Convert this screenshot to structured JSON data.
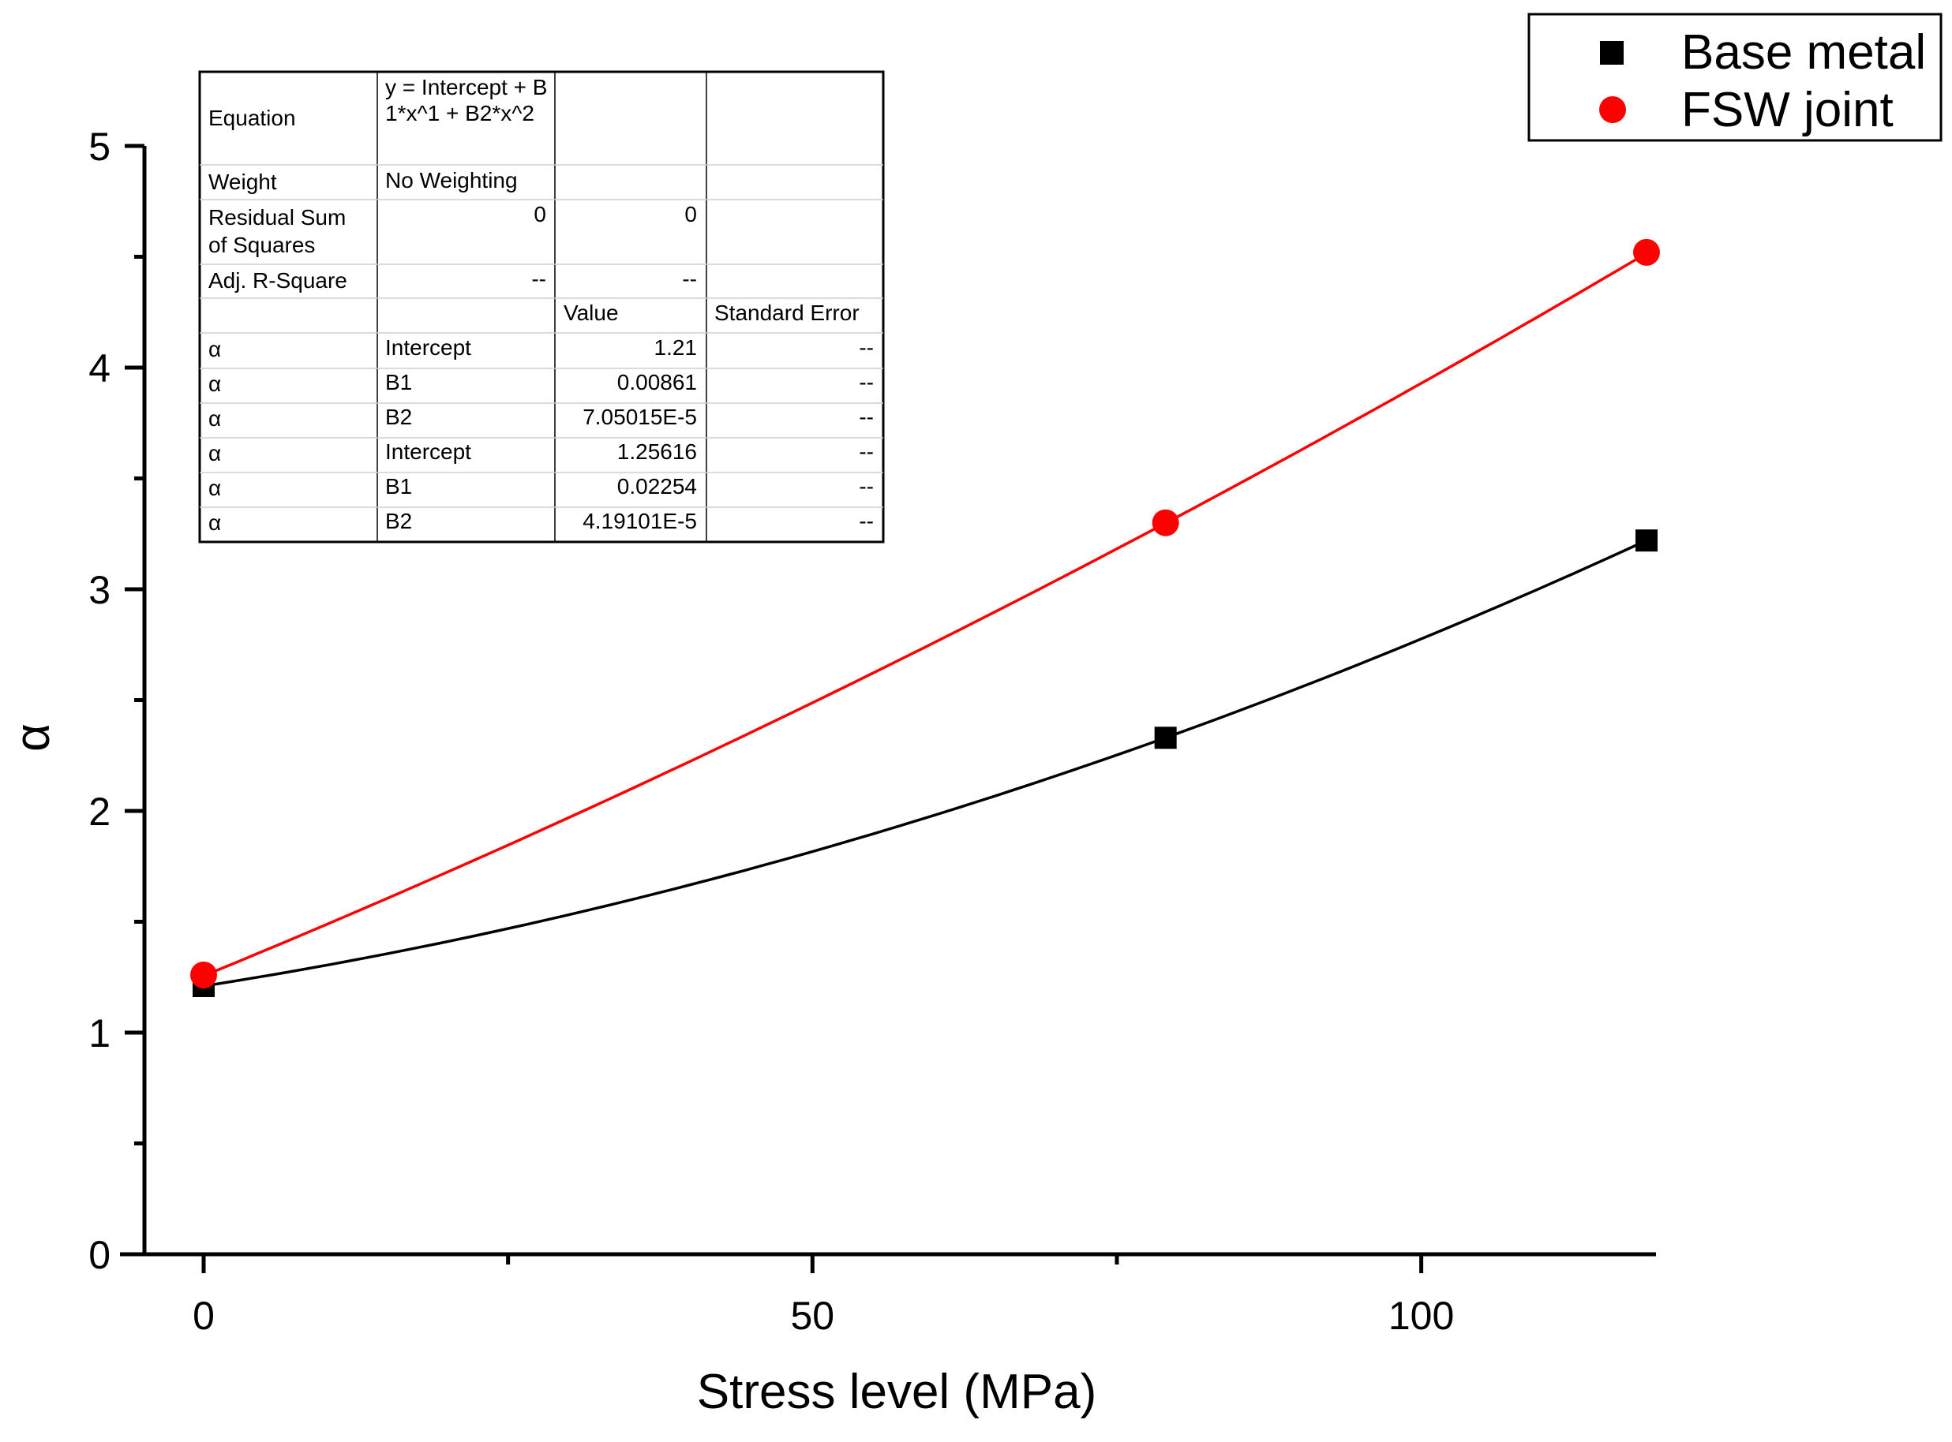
{
  "chart_data": {
    "type": "scatter",
    "title": "",
    "xlabel": "Stress level (MPa)",
    "ylabel": "α",
    "xlim": [
      -6,
      120
    ],
    "ylim": [
      0,
      5
    ],
    "x_ticks": [
      "0",
      "50",
      "100"
    ],
    "y_ticks": [
      "0",
      "1",
      "2",
      "3",
      "4",
      "5"
    ],
    "grid": false,
    "legend_position": "top-right",
    "series": [
      {
        "name": "Base metal",
        "marker": "square",
        "color": "#000000",
        "x": [
          0,
          79,
          118.5
        ],
        "y": [
          1.21,
          2.33,
          3.22
        ],
        "fit": {
          "intercept": 1.21,
          "b1": 0.00861,
          "b2": 7.05015e-05
        }
      },
      {
        "name": "FSW joint",
        "marker": "circle",
        "color": "#ff0000",
        "x": [
          0,
          79,
          118.5
        ],
        "y": [
          1.26,
          3.3,
          4.52
        ],
        "fit": {
          "intercept": 1.25616,
          "b1": 0.02254,
          "b2": 4.19101e-05
        }
      }
    ],
    "fit_table": {
      "equation_label": "Equation",
      "equation_line1": "y = Intercept + B",
      "equation_line2": "1*x^1 + B2*x^2",
      "weight_label": "Weight",
      "weight_value": "No Weighting",
      "rss_label_line1": "Residual Sum",
      "rss_label_line2": "of Squares",
      "rss_values": [
        "0",
        "0"
      ],
      "adj_label": "Adj. R-Square",
      "adj_values": [
        "--",
        "--"
      ],
      "value_header": "Value",
      "stderr_header": "Standard Error",
      "rows": [
        {
          "dep": "α",
          "param": "Intercept",
          "value": "1.21",
          "error": "--"
        },
        {
          "dep": "α",
          "param": "B1",
          "value": "0.00861",
          "error": "--"
        },
        {
          "dep": "α",
          "param": "B2",
          "value": "7.05015E-5",
          "error": "--"
        },
        {
          "dep": "α",
          "param": "Intercept",
          "value": "1.25616",
          "error": "--"
        },
        {
          "dep": "α",
          "param": "B1",
          "value": "0.02254",
          "error": "--"
        },
        {
          "dep": "α",
          "param": "B2",
          "value": "4.19101E-5",
          "error": "--"
        }
      ]
    }
  }
}
